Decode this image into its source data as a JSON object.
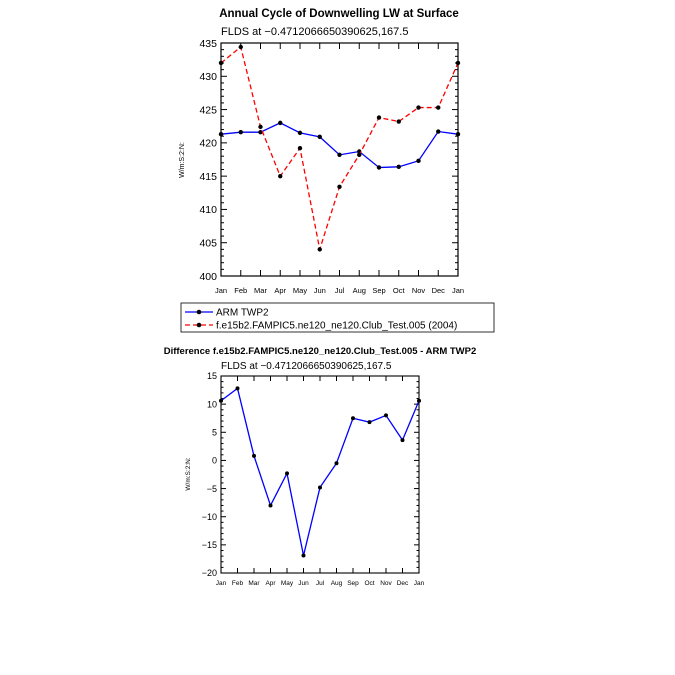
{
  "chart_data": [
    {
      "type": "line",
      "title": "Annual Cycle of Downwelling LW at Surface",
      "subtitle": "FLDS  at  −0.4712066650390625,167.5",
      "ylabel": "W/m:S:2:N:",
      "xlabel": "",
      "categories": [
        "Jan",
        "Feb",
        "Mar",
        "Apr",
        "May",
        "Jun",
        "Jul",
        "Aug",
        "Sep",
        "Oct",
        "Nov",
        "Dec",
        "Jan"
      ],
      "yticks": [
        "400",
        "405",
        "410",
        "415",
        "420",
        "425",
        "430",
        "435"
      ],
      "ylim": [
        400,
        435
      ],
      "grid": false,
      "legend_position": "bottom",
      "series": [
        {
          "name": "ARM TWP2",
          "color": "#0000ff",
          "dash": "solid",
          "values": [
            421.3,
            421.6,
            421.6,
            423.0,
            421.5,
            420.9,
            418.2,
            418.7,
            416.3,
            416.4,
            417.3,
            421.7,
            421.3
          ]
        },
        {
          "name": "f.e15b2.FAMPIC5.ne120_ne120.Club_Test.005 (2004)",
          "color": "#ff0000",
          "dash": "dashed",
          "values": [
            432.0,
            434.4,
            422.4,
            415.0,
            419.2,
            404.0,
            413.4,
            418.2,
            423.8,
            423.2,
            425.3,
            425.3,
            432.0
          ]
        }
      ]
    },
    {
      "type": "line",
      "title": "Difference f.e15b2.FAMPIC5.ne120_ne120.Club_Test.005 - ARM TWP2",
      "subtitle": "FLDS  at  −0.4712066650390625,167.5",
      "ylabel": "W/m:S:2:N:",
      "xlabel": "",
      "categories": [
        "Jan",
        "Feb",
        "Mar",
        "Apr",
        "May",
        "Jun",
        "Jul",
        "Aug",
        "Sep",
        "Oct",
        "Nov",
        "Dec",
        "Jan"
      ],
      "yticks": [
        "−20",
        "−15",
        "−10",
        "−5",
        "0",
        "5",
        "10",
        "15"
      ],
      "ylim": [
        -20,
        15
      ],
      "grid": false,
      "series": [
        {
          "color": "#0000ff",
          "dash": "solid",
          "values": [
            10.6,
            12.8,
            0.8,
            -8.0,
            -2.3,
            -16.9,
            -4.8,
            -0.5,
            7.5,
            6.8,
            8.0,
            3.6,
            10.6
          ]
        }
      ]
    }
  ]
}
